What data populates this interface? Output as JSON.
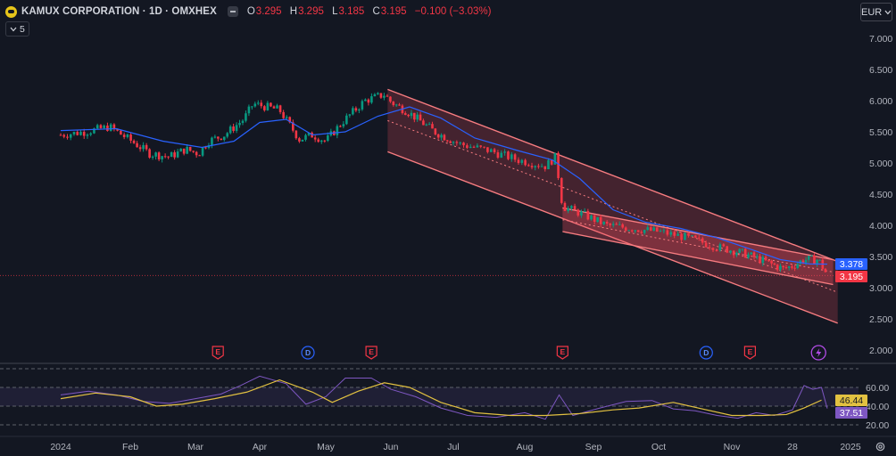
{
  "header": {
    "symbol": "KAMUX CORPORATION · 1D · OMXHEX",
    "open_label": "O",
    "open": "3.295",
    "high_label": "H",
    "high": "3.295",
    "low_label": "L",
    "low": "3.185",
    "close_label": "C",
    "close": "3.195",
    "change": "−0.100 (−3.03%)"
  },
  "indicator_toggle": {
    "icon": "chevron-down-icon",
    "count": "5"
  },
  "currency": "EUR",
  "price_labels": {
    "ma": "3.378",
    "last": "3.195"
  },
  "rsi_labels": {
    "ma": "46.44",
    "rsi": "37.51"
  },
  "colors": {
    "background": "#131722",
    "up": "#089981",
    "down": "#f23645",
    "ma": "#2962ff",
    "rsi": "#7e57c2",
    "rsi_ma": "#e2c141",
    "channel": "#f7525f",
    "grid": "#2a2e39",
    "text": "#b2b5be"
  },
  "chart_data": {
    "type": "candlestick",
    "price_axis": {
      "ticks": [
        2.0,
        2.5,
        3.0,
        3.5,
        4.0,
        4.5,
        5.0,
        5.5,
        6.0,
        6.5,
        7.0
      ],
      "labels": [
        "2.000",
        "2.500",
        "3.000",
        "3.500",
        "4.000",
        "4.500",
        "5.000",
        "5.500",
        "6.000",
        "6.500",
        "7.000"
      ]
    },
    "time_axis": [
      "2024",
      "Feb",
      "Mar",
      "Apr",
      "May",
      "Jun",
      "Jul",
      "Aug",
      "Sep",
      "Oct",
      "Nov",
      "28",
      "2025"
    ],
    "close_path": [
      [
        0,
        5.45
      ],
      [
        0.35,
        5.5
      ],
      [
        0.7,
        5.58
      ],
      [
        0.95,
        5.4
      ],
      [
        1.3,
        5.15
      ],
      [
        1.6,
        5.1
      ],
      [
        1.85,
        5.22
      ],
      [
        2.05,
        5.15
      ],
      [
        2.2,
        5.35
      ],
      [
        2.45,
        5.45
      ],
      [
        2.75,
        5.7
      ],
      [
        2.9,
        5.95
      ],
      [
        3.3,
        5.85
      ],
      [
        3.6,
        5.38
      ],
      [
        3.8,
        5.45
      ],
      [
        4.0,
        5.35
      ],
      [
        4.25,
        5.65
      ],
      [
        4.6,
        6.0
      ],
      [
        4.9,
        6.1
      ],
      [
        5.0,
        5.98
      ],
      [
        5.3,
        5.8
      ],
      [
        5.7,
        5.5
      ],
      [
        6.1,
        5.3
      ],
      [
        6.5,
        5.2
      ],
      [
        6.9,
        5.05
      ],
      [
        7.3,
        4.95
      ],
      [
        7.45,
        5.1
      ],
      [
        7.55,
        4.3
      ],
      [
        7.8,
        4.2
      ],
      [
        8.2,
        4.0
      ],
      [
        8.6,
        3.95
      ],
      [
        9.0,
        3.9
      ],
      [
        9.4,
        3.8
      ],
      [
        9.8,
        3.65
      ],
      [
        10.2,
        3.55
      ],
      [
        10.6,
        3.4
      ],
      [
        10.85,
        3.3
      ],
      [
        11.0,
        3.35
      ],
      [
        11.2,
        3.45
      ],
      [
        11.45,
        3.45
      ],
      [
        11.6,
        3.195
      ]
    ],
    "ma_path": [
      [
        0,
        5.52
      ],
      [
        0.8,
        5.55
      ],
      [
        1.5,
        5.35
      ],
      [
        2.1,
        5.25
      ],
      [
        2.6,
        5.35
      ],
      [
        3.0,
        5.65
      ],
      [
        3.4,
        5.7
      ],
      [
        3.8,
        5.45
      ],
      [
        4.3,
        5.5
      ],
      [
        4.8,
        5.75
      ],
      [
        5.3,
        5.9
      ],
      [
        5.8,
        5.72
      ],
      [
        6.3,
        5.4
      ],
      [
        6.9,
        5.2
      ],
      [
        7.4,
        5.05
      ],
      [
        7.8,
        4.75
      ],
      [
        8.3,
        4.25
      ],
      [
        8.8,
        4.05
      ],
      [
        9.3,
        3.95
      ],
      [
        9.8,
        3.8
      ],
      [
        10.3,
        3.62
      ],
      [
        10.8,
        3.45
      ],
      [
        11.3,
        3.38
      ],
      [
        11.6,
        3.378
      ]
    ],
    "ma_period_note": "",
    "channels": [
      {
        "upper_start": [
          4.95,
          6.18
        ],
        "upper_end": [
          11.78,
          3.42
        ],
        "lower_start": [
          4.95,
          5.18
        ],
        "lower_end": [
          11.78,
          2.43
        ]
      },
      {
        "upper_start": [
          7.55,
          4.28
        ],
        "upper_end": [
          11.7,
          3.45
        ],
        "lower_start": [
          7.55,
          3.9
        ],
        "lower_end": [
          11.7,
          3.05
        ]
      }
    ],
    "events": [
      {
        "type": "E",
        "x": 2.35
      },
      {
        "type": "D",
        "x": 3.73
      },
      {
        "type": "E",
        "x": 4.7
      },
      {
        "type": "E",
        "x": 7.55
      },
      {
        "type": "D",
        "x": 9.65
      },
      {
        "type": "E",
        "x": 10.3
      },
      {
        "type": "flash",
        "x": 11.45
      }
    ],
    "rsi": {
      "levels": [
        20,
        40,
        60,
        80
      ],
      "labels": [
        "20.00",
        "40.00",
        "60.00"
      ],
      "path": [
        [
          0,
          52
        ],
        [
          0.4,
          56
        ],
        [
          0.8,
          52
        ],
        [
          1.2,
          45
        ],
        [
          1.6,
          43
        ],
        [
          2.0,
          48
        ],
        [
          2.4,
          53
        ],
        [
          2.7,
          62
        ],
        [
          3.0,
          72
        ],
        [
          3.4,
          64
        ],
        [
          3.7,
          42
        ],
        [
          4.0,
          50
        ],
        [
          4.3,
          70
        ],
        [
          4.7,
          70
        ],
        [
          5.0,
          58
        ],
        [
          5.4,
          50
        ],
        [
          5.8,
          38
        ],
        [
          6.2,
          30
        ],
        [
          6.6,
          28
        ],
        [
          7.0,
          33
        ],
        [
          7.3,
          26
        ],
        [
          7.5,
          52
        ],
        [
          7.7,
          30
        ],
        [
          8.1,
          38
        ],
        [
          8.5,
          45
        ],
        [
          8.9,
          46
        ],
        [
          9.2,
          37
        ],
        [
          9.5,
          35
        ],
        [
          9.8,
          30
        ],
        [
          10.1,
          27
        ],
        [
          10.4,
          33
        ],
        [
          10.7,
          30
        ],
        [
          11.0,
          36
        ],
        [
          11.2,
          62
        ],
        [
          11.35,
          58
        ],
        [
          11.5,
          60
        ],
        [
          11.6,
          37.51
        ]
      ],
      "ma_path": [
        [
          0,
          48
        ],
        [
          0.5,
          54
        ],
        [
          1.0,
          50
        ],
        [
          1.4,
          40
        ],
        [
          1.8,
          42
        ],
        [
          2.3,
          48
        ],
        [
          2.8,
          55
        ],
        [
          3.3,
          68
        ],
        [
          3.8,
          55
        ],
        [
          4.1,
          44
        ],
        [
          4.5,
          56
        ],
        [
          4.9,
          65
        ],
        [
          5.3,
          60
        ],
        [
          5.8,
          44
        ],
        [
          6.3,
          33
        ],
        [
          6.8,
          30
        ],
        [
          7.3,
          30
        ],
        [
          7.8,
          32
        ],
        [
          8.3,
          36
        ],
        [
          8.7,
          38
        ],
        [
          9.2,
          44
        ],
        [
          9.6,
          37
        ],
        [
          10.0,
          30
        ],
        [
          10.5,
          30
        ],
        [
          10.9,
          31
        ],
        [
          11.2,
          38
        ],
        [
          11.5,
          46.44
        ]
      ]
    }
  }
}
